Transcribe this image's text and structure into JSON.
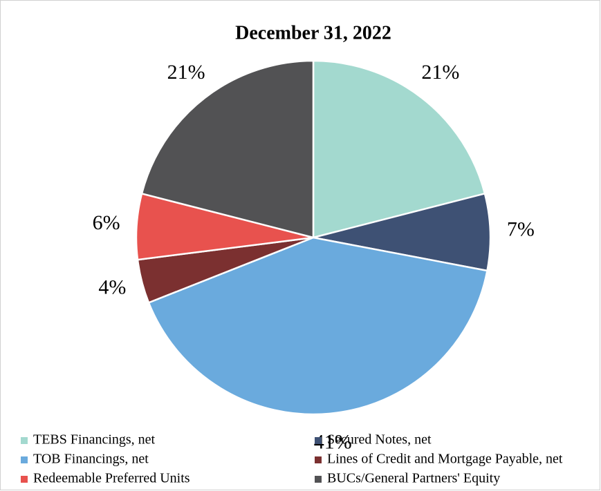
{
  "chart_data": {
    "type": "pie",
    "title": "December 31, 2022",
    "categories": [
      "TEBS Financings, net",
      "Secured Notes, net",
      "TOB Financings, net",
      "Lines of Credit and Mortgage Payable, net",
      "Redeemable Preferred Units",
      "BUCs/General Partners' Equity"
    ],
    "values": [
      21,
      7,
      41,
      4,
      6,
      21
    ],
    "value_labels": [
      "21%",
      "7%",
      "41%",
      "4%",
      "6%",
      "21%"
    ],
    "colors": [
      "#a3d9cf",
      "#3e5174",
      "#6aaadd",
      "#7b3030",
      "#e8524e",
      "#525254"
    ]
  }
}
